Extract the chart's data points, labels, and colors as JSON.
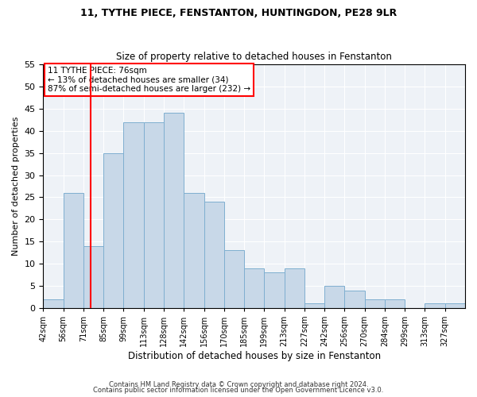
{
  "title1": "11, TYTHE PIECE, FENSTANTON, HUNTINGDON, PE28 9LR",
  "title2": "Size of property relative to detached houses in Fenstanton",
  "xlabel": "Distribution of detached houses by size in Fenstanton",
  "ylabel": "Number of detached properties",
  "bin_labels": [
    "42sqm",
    "56sqm",
    "71sqm",
    "85sqm",
    "99sqm",
    "113sqm",
    "128sqm",
    "142sqm",
    "156sqm",
    "170sqm",
    "185sqm",
    "199sqm",
    "213sqm",
    "227sqm",
    "242sqm",
    "256sqm",
    "270sqm",
    "284sqm",
    "299sqm",
    "313sqm",
    "327sqm"
  ],
  "values": [
    2,
    26,
    14,
    35,
    42,
    42,
    44,
    26,
    24,
    13,
    9,
    8,
    9,
    1,
    5,
    4,
    2,
    2,
    0,
    1,
    1
  ],
  "bar_color": "#c8d8e8",
  "bar_edge_color": "#7fafd0",
  "marker_bin": 1,
  "marker_color": "red",
  "annotation_text": "11 TYTHE PIECE: 76sqm\n← 13% of detached houses are smaller (34)\n87% of semi-detached houses are larger (232) →",
  "annotation_box_color": "white",
  "annotation_box_edge": "red",
  "footer1": "Contains HM Land Registry data © Crown copyright and database right 2024.",
  "footer2": "Contains public sector information licensed under the Open Government Licence v3.0.",
  "ylim": [
    0,
    55
  ],
  "yticks": [
    0,
    5,
    10,
    15,
    20,
    25,
    30,
    35,
    40,
    45,
    50,
    55
  ],
  "background_color": "#eef2f7"
}
